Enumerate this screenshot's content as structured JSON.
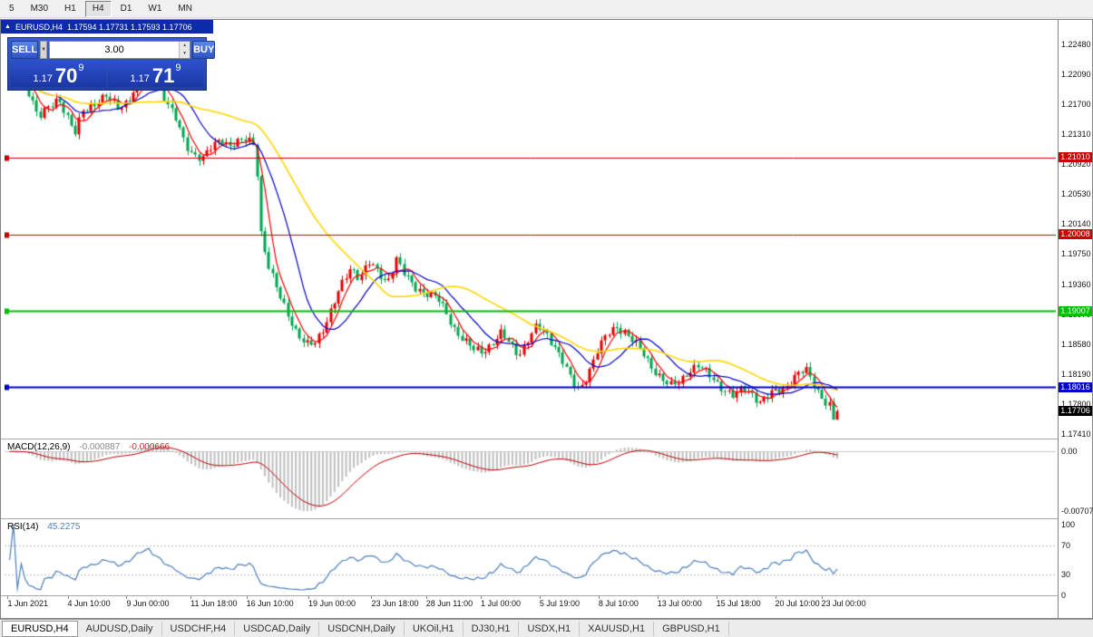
{
  "window": {
    "toolbar": {
      "timeframes": [
        {
          "label": "5",
          "active": false
        },
        {
          "label": "M30",
          "active": false
        },
        {
          "label": "H1",
          "active": false
        },
        {
          "label": "H4",
          "active": true
        },
        {
          "label": "D1",
          "active": false
        },
        {
          "label": "W1",
          "active": false
        },
        {
          "label": "MN",
          "active": false
        }
      ]
    },
    "title_bar": {
      "icon": "▲"
    },
    "one_click": {
      "sell_label": "SELL",
      "buy_label": "BUY",
      "volume": "3.00",
      "bid": {
        "small": "1.17",
        "big": "70",
        "sup": "9"
      },
      "ask": {
        "small": "1.17",
        "big": "71",
        "sup": "9"
      }
    }
  },
  "chart_data": {
    "type": "candlestick",
    "symbol": "EURUSD",
    "timeframe": "H4",
    "title": "EURUSD,H4",
    "ohlc_label": "1.17594 1.17731 1.17593 1.17706",
    "ohlc_current": {
      "open": 1.17594,
      "high": 1.17731,
      "low": 1.17593,
      "close": 1.17706
    },
    "ylim": [
      1.1736,
      1.228
    ],
    "y_ticks": [
      "1.22480",
      "1.22090",
      "1.21700",
      "1.21310",
      "1.20920",
      "1.20530",
      "1.20140",
      "1.19750",
      "1.19360",
      "1.18970",
      "1.18580",
      "1.18190",
      "1.17800",
      "1.17410"
    ],
    "x_labels": [
      {
        "label": "1 Jun 2021",
        "f": 0.003
      },
      {
        "label": "4 Jun 10:00",
        "f": 0.06
      },
      {
        "label": "9 Jun 00:00",
        "f": 0.116
      },
      {
        "label": "11 Jun 18:00",
        "f": 0.177
      },
      {
        "label": "16 Jun 10:00",
        "f": 0.23
      },
      {
        "label": "19 Jun 00:00",
        "f": 0.289
      },
      {
        "label": "23 Jun 18:00",
        "f": 0.349
      },
      {
        "label": "28 Jun 11:00",
        "f": 0.401
      },
      {
        "label": "1 Jul 00:00",
        "f": 0.453
      },
      {
        "label": "5 Jul 19:00",
        "f": 0.509
      },
      {
        "label": "8 Jul 10:00",
        "f": 0.565
      },
      {
        "label": "13 Jul 00:00",
        "f": 0.621
      },
      {
        "label": "15 Jul 18:00",
        "f": 0.677
      },
      {
        "label": "20 Jul 10:00",
        "f": 0.733
      },
      {
        "label": "23 Jul 00:00",
        "f": 0.777
      }
    ],
    "candle_count": 215,
    "candle_span": [
      0.003,
      0.794
    ],
    "colors": {
      "bull": "#e60000",
      "bear": "#00a651",
      "background": "#ffffff"
    },
    "price_path": [
      [
        0.0,
        1.22
      ],
      [
        0.013,
        1.2207
      ],
      [
        0.024,
        1.2186
      ],
      [
        0.035,
        1.2152
      ],
      [
        0.046,
        1.2167
      ],
      [
        0.059,
        1.218
      ],
      [
        0.07,
        1.215
      ],
      [
        0.079,
        1.2128
      ],
      [
        0.089,
        1.2163
      ],
      [
        0.103,
        1.2172
      ],
      [
        0.117,
        1.2181
      ],
      [
        0.131,
        1.2168
      ],
      [
        0.144,
        1.2176
      ],
      [
        0.157,
        1.2196
      ],
      [
        0.168,
        1.2212
      ],
      [
        0.179,
        1.2199
      ],
      [
        0.19,
        1.2172
      ],
      [
        0.201,
        1.2152
      ],
      [
        0.212,
        1.2122
      ],
      [
        0.222,
        1.2106
      ],
      [
        0.233,
        1.2096
      ],
      [
        0.244,
        1.2112
      ],
      [
        0.255,
        1.2126
      ],
      [
        0.266,
        1.2116
      ],
      [
        0.277,
        1.2121
      ],
      [
        0.288,
        1.2127
      ],
      [
        0.297,
        1.2119
      ],
      [
        0.304,
        1.1999
      ],
      [
        0.314,
        1.1952
      ],
      [
        0.325,
        1.1922
      ],
      [
        0.336,
        1.1898
      ],
      [
        0.347,
        1.1872
      ],
      [
        0.358,
        1.1856
      ],
      [
        0.369,
        1.1862
      ],
      [
        0.38,
        1.1883
      ],
      [
        0.39,
        1.1906
      ],
      [
        0.401,
        1.1932
      ],
      [
        0.412,
        1.1956
      ],
      [
        0.423,
        1.1944
      ],
      [
        0.434,
        1.1964
      ],
      [
        0.445,
        1.1952
      ],
      [
        0.456,
        1.194
      ],
      [
        0.467,
        1.1971
      ],
      [
        0.478,
        1.1945
      ],
      [
        0.489,
        1.193
      ],
      [
        0.504,
        1.1924
      ],
      [
        0.517,
        1.1917
      ],
      [
        0.528,
        1.1898
      ],
      [
        0.539,
        1.1878
      ],
      [
        0.55,
        1.1863
      ],
      [
        0.56,
        1.1849
      ],
      [
        0.571,
        1.1846
      ],
      [
        0.582,
        1.1857
      ],
      [
        0.593,
        1.1871
      ],
      [
        0.604,
        1.1859
      ],
      [
        0.615,
        1.1846
      ],
      [
        0.626,
        1.1866
      ],
      [
        0.637,
        1.1881
      ],
      [
        0.648,
        1.1869
      ],
      [
        0.659,
        1.1854
      ],
      [
        0.67,
        1.1832
      ],
      [
        0.68,
        1.1806
      ],
      [
        0.689,
        1.1798
      ],
      [
        0.7,
        1.1826
      ],
      [
        0.711,
        1.1853
      ],
      [
        0.722,
        1.1869
      ],
      [
        0.733,
        1.1879
      ],
      [
        0.744,
        1.1873
      ],
      [
        0.755,
        1.1858
      ],
      [
        0.766,
        1.1844
      ],
      [
        0.776,
        1.183
      ],
      [
        0.787,
        1.1817
      ],
      [
        0.798,
        1.1803
      ],
      [
        0.809,
        1.1807
      ],
      [
        0.82,
        1.1822
      ],
      [
        0.831,
        1.1829
      ],
      [
        0.842,
        1.1818
      ],
      [
        0.853,
        1.181
      ],
      [
        0.864,
        1.1801
      ],
      [
        0.875,
        1.1791
      ],
      [
        0.885,
        1.1799
      ],
      [
        0.896,
        1.1794
      ],
      [
        0.907,
        1.1781
      ],
      [
        0.918,
        1.179
      ],
      [
        0.929,
        1.1797
      ],
      [
        0.94,
        1.1806
      ],
      [
        0.951,
        1.1821
      ],
      [
        0.962,
        1.1824
      ],
      [
        0.971,
        1.1807
      ],
      [
        0.979,
        1.1792
      ],
      [
        0.988,
        1.1779
      ],
      [
        1.0,
        1.17706
      ]
    ],
    "moving_averages": [
      {
        "period": 5,
        "color": "#ff0000"
      },
      {
        "period": 13,
        "color": "#0000c8"
      },
      {
        "period": 34,
        "color": "#ffd700"
      }
    ],
    "hlines": [
      {
        "value": 1.2101,
        "label": "1.21010",
        "color": "#cc0000",
        "width": 1
      },
      {
        "value": 1.20008,
        "label": "1.20008",
        "color": "#cc0000",
        "width": 1
      },
      {
        "value": 1.19007,
        "label": "1.19007",
        "color": "#00c000",
        "width": 2
      },
      {
        "value": 1.18016,
        "label": "1.18016",
        "color": "#0000d0",
        "width": 2
      }
    ],
    "current_price": {
      "label": "1.17706",
      "value": 1.17706,
      "bg": "#000000"
    },
    "indicators": {
      "macd": {
        "name": "MACD(12,26,9)",
        "fast": 12,
        "slow": 26,
        "signal": 9,
        "value_main": "-0.000887",
        "value_signal": "-0.000666",
        "ylim": [
          -0.0078,
          0.0012
        ],
        "ticks": [
          {
            "label": "0.00",
            "v": 0
          },
          {
            "label": "-0.00707",
            "v": -0.00707
          }
        ],
        "histogram_color": "#bfbfbf",
        "signal_color": "#c00000"
      },
      "rsi": {
        "name": "RSI(14)",
        "period": 14,
        "value": "45.2275",
        "ylim": [
          0,
          105
        ],
        "levels": [
          70,
          30
        ],
        "ticks": [
          {
            "label": "100",
            "v": 100
          },
          {
            "label": "70",
            "v": 70
          },
          {
            "label": "30",
            "v": 30
          },
          {
            "label": "0",
            "v": 0
          }
        ],
        "line_color": "#4c7fbe"
      }
    }
  },
  "tabs": [
    {
      "label": "EURUSD,H4",
      "active": true
    },
    {
      "label": "AUDUSD,Daily",
      "active": false
    },
    {
      "label": "USDCHF,H4",
      "active": false
    },
    {
      "label": "USDCAD,Daily",
      "active": false
    },
    {
      "label": "USDCNH,Daily",
      "active": false
    },
    {
      "label": "UKOil,H1",
      "active": false
    },
    {
      "label": "DJ30,H1",
      "active": false
    },
    {
      "label": "USDX,H1",
      "active": false
    },
    {
      "label": "XAUUSD,H1",
      "active": false
    },
    {
      "label": "GBPUSD,H1",
      "active": false
    }
  ]
}
